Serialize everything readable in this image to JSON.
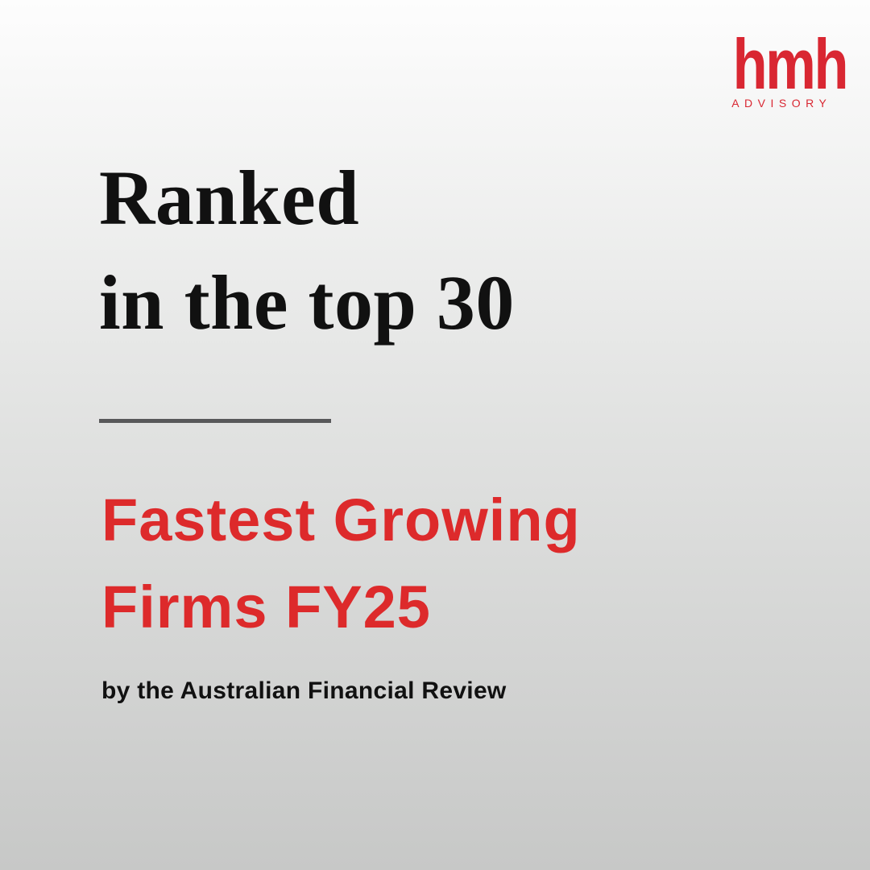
{
  "colors": {
    "background_top": "#fdfdfd",
    "background_bottom": "#c7c8c7",
    "brand_red": "#d92732",
    "accent_red": "#dd2a2b",
    "divider_gray": "#58585a",
    "text_black": "#111111"
  },
  "logo": {
    "wordmark": "hmh",
    "tagline": "ADVISORY"
  },
  "headline": {
    "line1": "Ranked",
    "line2": "in the top 30"
  },
  "subheadline": {
    "line1": "Fastest Growing",
    "line2": "Firms FY25"
  },
  "byline": "by the Australian Financial Review"
}
